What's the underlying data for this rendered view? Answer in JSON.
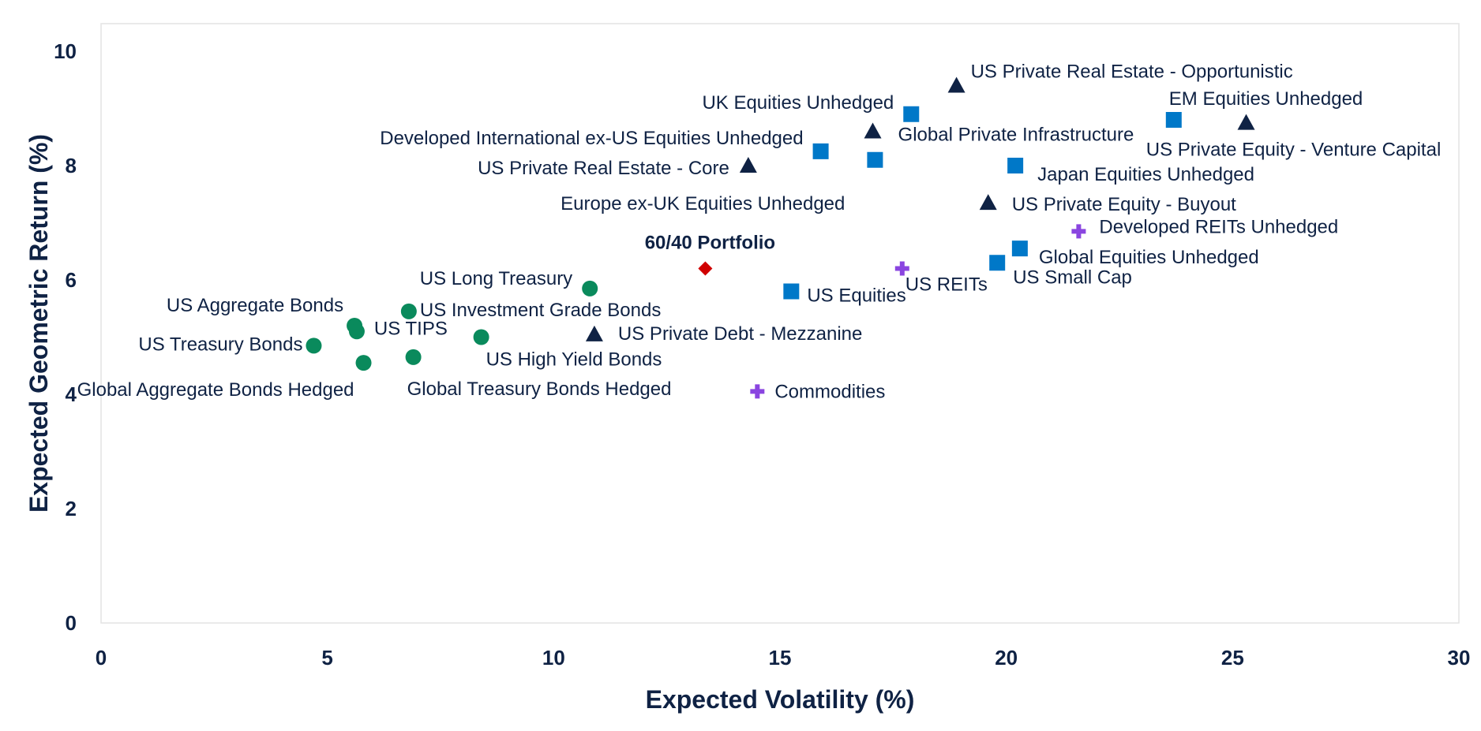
{
  "chart_data": {
    "type": "scatter",
    "xlabel": "Expected Volatility (%)",
    "ylabel": "Expected Geometric Return (%)",
    "xlim": [
      0,
      30
    ],
    "ylim": [
      0,
      10
    ],
    "x_ticks": [
      "0",
      "5",
      "10",
      "15",
      "20",
      "25",
      "30"
    ],
    "y_ticks": [
      "0",
      "2",
      "4",
      "6",
      "8",
      "10"
    ],
    "grid": false,
    "legend": "none",
    "colors": {
      "circle": "#0a8a5c",
      "square": "#0078c8",
      "triangle": "#0f2244",
      "plus": "#8a45e0",
      "diamond": "#d00000",
      "frame": "#e3e3e3",
      "text": "#0f2244"
    },
    "points": [
      {
        "label": "US Aggregate Bonds",
        "x": 5.6,
        "y": 5.2,
        "shape": "circle",
        "anchor": "end",
        "bold": false
      },
      {
        "label": "US TIPS",
        "x": 5.65,
        "y": 5.1,
        "shape": "circle",
        "anchor": "start",
        "bold": false
      },
      {
        "label": "US Treasury Bonds",
        "x": 4.7,
        "y": 4.85,
        "shape": "circle",
        "anchor": "end",
        "bold": false
      },
      {
        "label": "Global Aggregate Bonds Hedged",
        "x": 5.8,
        "y": 4.55,
        "shape": "circle",
        "anchor": "end",
        "bold": false
      },
      {
        "label": "US Investment Grade Bonds",
        "x": 6.8,
        "y": 5.45,
        "shape": "circle",
        "anchor": "start",
        "bold": false
      },
      {
        "label": "Global Treasury Bonds Hedged",
        "x": 6.9,
        "y": 4.65,
        "shape": "circle",
        "anchor": "start",
        "bold": false
      },
      {
        "label": "US High Yield Bonds",
        "x": 8.4,
        "y": 5.0,
        "shape": "circle",
        "anchor": "start",
        "bold": false
      },
      {
        "label": "US Long Treasury",
        "x": 10.8,
        "y": 5.85,
        "shape": "circle",
        "anchor": "end",
        "bold": false
      },
      {
        "label": "US Private Debt - Mezzanine",
        "x": 10.9,
        "y": 5.05,
        "shape": "triangle",
        "anchor": "start",
        "bold": false
      },
      {
        "label": "60/40 Portfolio",
        "x": 13.35,
        "y": 6.2,
        "shape": "diamond",
        "anchor": "middle",
        "bold": true
      },
      {
        "label": "Commodities",
        "x": 14.5,
        "y": 4.05,
        "shape": "plus",
        "anchor": "start",
        "bold": false
      },
      {
        "label": "US Private Real Estate - Core",
        "x": 14.3,
        "y": 8.0,
        "shape": "triangle",
        "anchor": "end",
        "bold": false
      },
      {
        "label": "US Equities",
        "x": 15.25,
        "y": 5.8,
        "shape": "square",
        "anchor": "start",
        "bold": false
      },
      {
        "label": "Developed International ex-US Equities Unhedged",
        "x": 15.9,
        "y": 8.25,
        "shape": "square",
        "anchor": "end",
        "bold": false
      },
      {
        "label": "Europe ex-UK Equities Unhedged",
        "x": 17.1,
        "y": 8.1,
        "shape": "square",
        "anchor": "end",
        "bold": false
      },
      {
        "label": "Global Private Infrastructure",
        "x": 17.05,
        "y": 8.6,
        "shape": "triangle",
        "anchor": "start",
        "bold": false
      },
      {
        "label": "UK Equities Unhedged",
        "x": 17.9,
        "y": 8.9,
        "shape": "square",
        "anchor": "end",
        "bold": false
      },
      {
        "label": "US REITs",
        "x": 17.7,
        "y": 6.2,
        "shape": "plus",
        "anchor": "start",
        "bold": false
      },
      {
        "label": "US Private Real Estate - Opportunistic",
        "x": 18.9,
        "y": 9.4,
        "shape": "triangle",
        "anchor": "start",
        "bold": false
      },
      {
        "label": "US Private Equity - Buyout",
        "x": 19.6,
        "y": 7.35,
        "shape": "triangle",
        "anchor": "start",
        "bold": false
      },
      {
        "label": "US Small Cap",
        "x": 19.8,
        "y": 6.3,
        "shape": "square",
        "anchor": "start",
        "bold": false
      },
      {
        "label": "Japan Equities Unhedged",
        "x": 20.2,
        "y": 8.0,
        "shape": "square",
        "anchor": "start",
        "bold": false
      },
      {
        "label": "Global Equities Unhedged",
        "x": 20.3,
        "y": 6.55,
        "shape": "square",
        "anchor": "start",
        "bold": false
      },
      {
        "label": "Developed REITs Unhedged",
        "x": 21.6,
        "y": 6.85,
        "shape": "plus",
        "anchor": "start",
        "bold": false
      },
      {
        "label": "EM Equities Unhedged",
        "x": 23.7,
        "y": 8.8,
        "shape": "square",
        "anchor": "start",
        "bold": false
      },
      {
        "label": "US Private Equity - Venture Capital",
        "x": 25.3,
        "y": 8.75,
        "shape": "triangle",
        "anchor": "middle",
        "bold": false
      }
    ]
  }
}
